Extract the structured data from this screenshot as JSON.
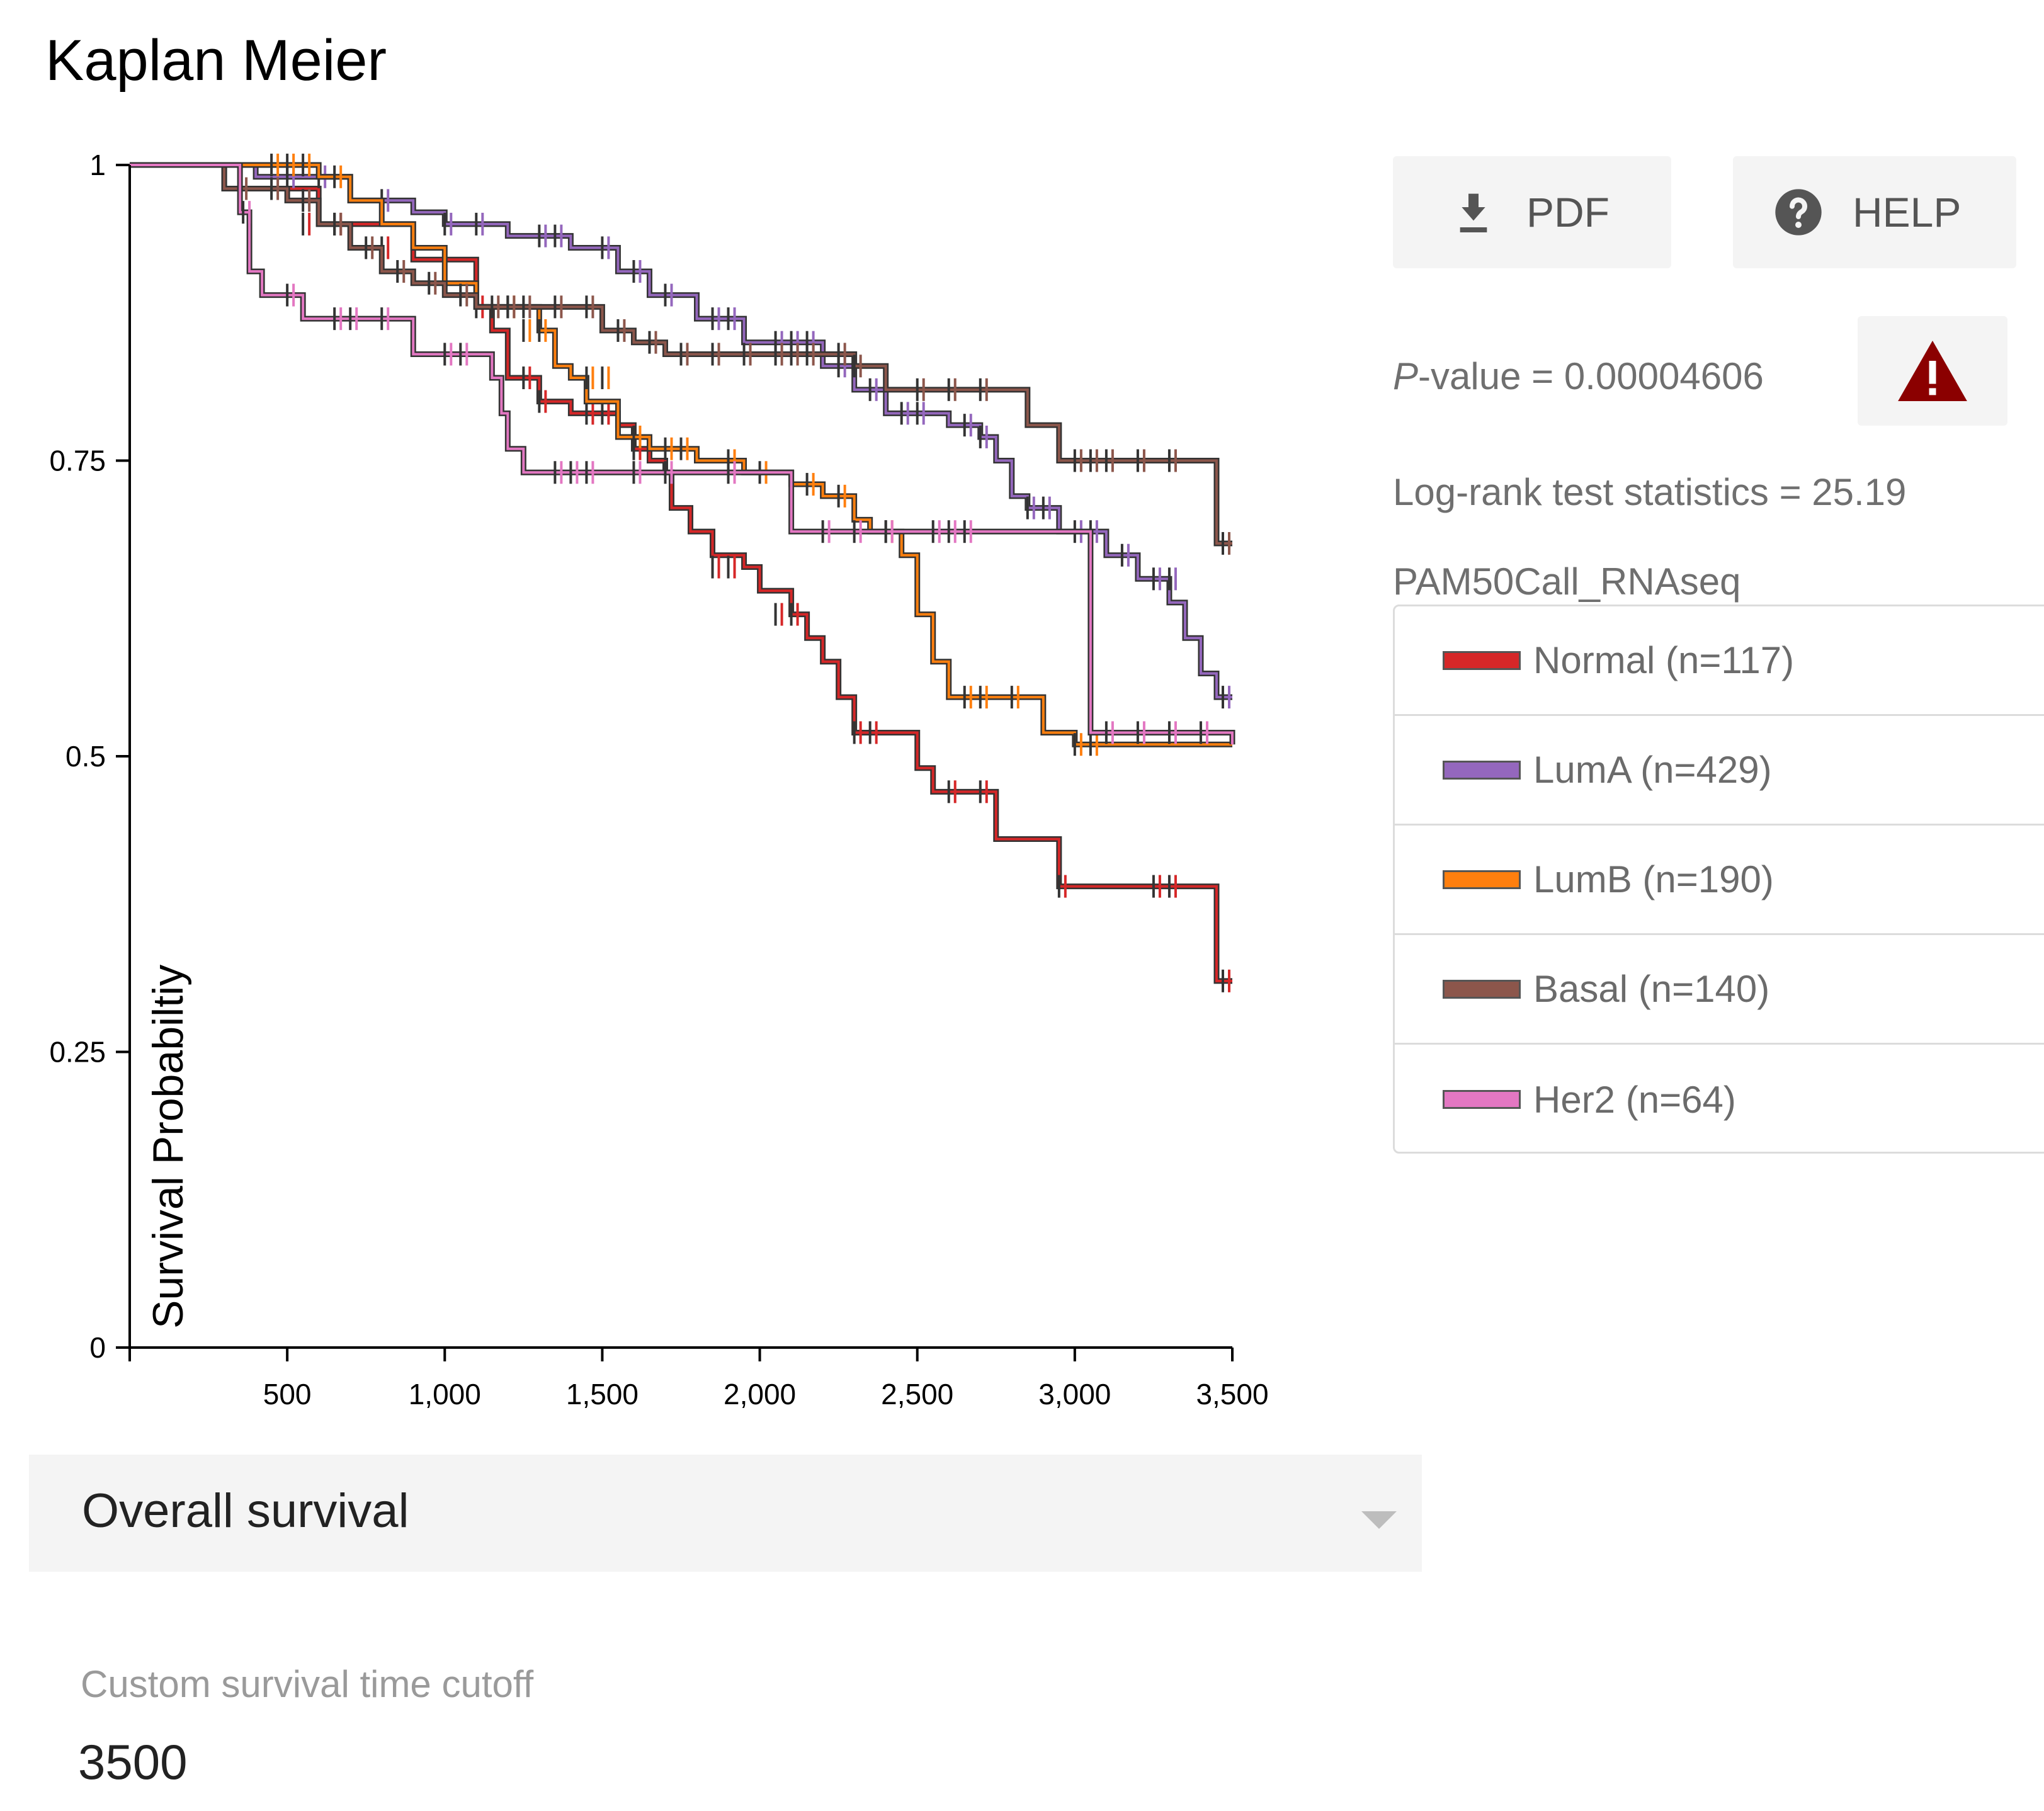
{
  "title": "Kaplan Meier",
  "buttons": {
    "pdf_label": "PDF",
    "help_label": "HELP"
  },
  "stats": {
    "pvalue_prefix": "P",
    "pvalue_rest": "-value = 0.00004606",
    "logrank": "Log-rank test statistics = 25.19",
    "grouping": "PAM50Call_RNAseq"
  },
  "icons": {
    "pdf": "download-icon",
    "help": "help-circle-icon",
    "warning": "warning-triangle-icon"
  },
  "colors": {
    "warning": "#8b0000"
  },
  "legend": [
    {
      "label": "Normal (n=117)",
      "color": "#d62728"
    },
    {
      "label": "LumA (n=429)",
      "color": "#9467bd"
    },
    {
      "label": "LumB (n=190)",
      "color": "#ff7f0e"
    },
    {
      "label": "Basal (n=140)",
      "color": "#8c564b"
    },
    {
      "label": "Her2 (n=64)",
      "color": "#e377c2"
    }
  ],
  "survival_select": {
    "value": "Overall survival"
  },
  "cutoff": {
    "label": "Custom survival time cutoff",
    "value": "3500"
  },
  "chart_data": {
    "type": "line",
    "title": "Kaplan Meier",
    "xlabel": "",
    "ylabel": "Survival Probabiltiy",
    "xlim": [
      0,
      3500
    ],
    "ylim": [
      0,
      1
    ],
    "xticks": [
      500,
      1000,
      1500,
      2000,
      2500,
      3000,
      3500
    ],
    "xtick_labels": [
      "500",
      "1,000",
      "1,500",
      "2,000",
      "2,500",
      "3,000",
      "3,500"
    ],
    "yticks": [
      0,
      0.25,
      0.5,
      0.75,
      1
    ],
    "ytick_labels": [
      "0",
      "0.25",
      "0.5",
      "0.75",
      "1"
    ],
    "grid": false,
    "legend": "right",
    "series": [
      {
        "name": "Normal (n=117)",
        "color": "#d62728",
        "steps": [
          [
            0,
            1
          ],
          [
            300,
            0.98
          ],
          [
            600,
            0.95
          ],
          [
            900,
            0.92
          ],
          [
            1100,
            0.88
          ],
          [
            1150,
            0.86
          ],
          [
            1200,
            0.82
          ],
          [
            1300,
            0.8
          ],
          [
            1400,
            0.79
          ],
          [
            1550,
            0.78
          ],
          [
            1600,
            0.76
          ],
          [
            1650,
            0.75
          ],
          [
            1700,
            0.74
          ],
          [
            1720,
            0.71
          ],
          [
            1780,
            0.69
          ],
          [
            1850,
            0.67
          ],
          [
            1950,
            0.66
          ],
          [
            2000,
            0.64
          ],
          [
            2100,
            0.62
          ],
          [
            2150,
            0.6
          ],
          [
            2200,
            0.58
          ],
          [
            2250,
            0.55
          ],
          [
            2300,
            0.52
          ],
          [
            2500,
            0.49
          ],
          [
            2550,
            0.47
          ],
          [
            2750,
            0.43
          ],
          [
            2950,
            0.39
          ],
          [
            3450,
            0.31
          ]
        ],
        "censors": [
          [
            550,
            0.95
          ],
          [
            650,
            0.95
          ],
          [
            800,
            0.93
          ],
          [
            1100,
            0.88
          ],
          [
            1250,
            0.82
          ],
          [
            1300,
            0.8
          ],
          [
            1450,
            0.79
          ],
          [
            1500,
            0.79
          ],
          [
            1600,
            0.76
          ],
          [
            1850,
            0.66
          ],
          [
            1900,
            0.66
          ],
          [
            2050,
            0.62
          ],
          [
            2100,
            0.62
          ],
          [
            2300,
            0.52
          ],
          [
            2350,
            0.52
          ],
          [
            2600,
            0.47
          ],
          [
            2700,
            0.47
          ],
          [
            2950,
            0.39
          ],
          [
            3250,
            0.39
          ],
          [
            3300,
            0.39
          ],
          [
            3470,
            0.31
          ]
        ]
      },
      {
        "name": "LumA (n=429)",
        "color": "#9467bd",
        "steps": [
          [
            0,
            1
          ],
          [
            400,
            0.99
          ],
          [
            700,
            0.97
          ],
          [
            900,
            0.96
          ],
          [
            1000,
            0.95
          ],
          [
            1200,
            0.94
          ],
          [
            1400,
            0.93
          ],
          [
            1550,
            0.91
          ],
          [
            1650,
            0.89
          ],
          [
            1800,
            0.87
          ],
          [
            1950,
            0.85
          ],
          [
            2200,
            0.83
          ],
          [
            2300,
            0.81
          ],
          [
            2400,
            0.79
          ],
          [
            2600,
            0.78
          ],
          [
            2700,
            0.77
          ],
          [
            2750,
            0.75
          ],
          [
            2800,
            0.72
          ],
          [
            2850,
            0.71
          ],
          [
            2950,
            0.69
          ],
          [
            3100,
            0.67
          ],
          [
            3200,
            0.65
          ],
          [
            3300,
            0.63
          ],
          [
            3350,
            0.6
          ],
          [
            3400,
            0.57
          ],
          [
            3450,
            0.55
          ]
        ],
        "censors": [
          [
            500,
            0.99
          ],
          [
            600,
            0.99
          ],
          [
            800,
            0.97
          ],
          [
            1000,
            0.95
          ],
          [
            1100,
            0.95
          ],
          [
            1300,
            0.94
          ],
          [
            1350,
            0.94
          ],
          [
            1500,
            0.93
          ],
          [
            1600,
            0.91
          ],
          [
            1700,
            0.89
          ],
          [
            1850,
            0.87
          ],
          [
            1900,
            0.87
          ],
          [
            2050,
            0.85
          ],
          [
            2100,
            0.85
          ],
          [
            2150,
            0.85
          ],
          [
            2250,
            0.83
          ],
          [
            2350,
            0.81
          ],
          [
            2450,
            0.79
          ],
          [
            2500,
            0.79
          ],
          [
            2650,
            0.78
          ],
          [
            2700,
            0.77
          ],
          [
            2850,
            0.71
          ],
          [
            2900,
            0.71
          ],
          [
            3000,
            0.69
          ],
          [
            3050,
            0.69
          ],
          [
            3150,
            0.67
          ],
          [
            3250,
            0.65
          ],
          [
            3300,
            0.65
          ],
          [
            3470,
            0.55
          ]
        ]
      },
      {
        "name": "LumB (n=190)",
        "color": "#ff7f0e",
        "steps": [
          [
            0,
            1
          ],
          [
            600,
            0.99
          ],
          [
            700,
            0.97
          ],
          [
            800,
            0.95
          ],
          [
            900,
            0.93
          ],
          [
            1000,
            0.9
          ],
          [
            1100,
            0.88
          ],
          [
            1300,
            0.86
          ],
          [
            1350,
            0.83
          ],
          [
            1400,
            0.82
          ],
          [
            1450,
            0.8
          ],
          [
            1550,
            0.77
          ],
          [
            1650,
            0.76
          ],
          [
            1800,
            0.75
          ],
          [
            1950,
            0.74
          ],
          [
            2100,
            0.73
          ],
          [
            2200,
            0.72
          ],
          [
            2300,
            0.7
          ],
          [
            2350,
            0.69
          ],
          [
            2450,
            0.67
          ],
          [
            2500,
            0.62
          ],
          [
            2550,
            0.58
          ],
          [
            2600,
            0.55
          ],
          [
            2900,
            0.52
          ],
          [
            3000,
            0.51
          ]
        ],
        "censors": [
          [
            450,
            1
          ],
          [
            500,
            1
          ],
          [
            550,
            1
          ],
          [
            650,
            0.99
          ],
          [
            1200,
            0.88
          ],
          [
            1250,
            0.86
          ],
          [
            1300,
            0.86
          ],
          [
            1450,
            0.82
          ],
          [
            1500,
            0.82
          ],
          [
            1600,
            0.77
          ],
          [
            1700,
            0.76
          ],
          [
            1750,
            0.76
          ],
          [
            1900,
            0.75
          ],
          [
            2000,
            0.74
          ],
          [
            2150,
            0.73
          ],
          [
            2250,
            0.72
          ],
          [
            2400,
            0.69
          ],
          [
            2650,
            0.55
          ],
          [
            2700,
            0.55
          ],
          [
            2800,
            0.55
          ],
          [
            3000,
            0.51
          ],
          [
            3050,
            0.51
          ]
        ]
      },
      {
        "name": "Basal (n=140)",
        "color": "#8c564b",
        "steps": [
          [
            0,
            1
          ],
          [
            300,
            0.98
          ],
          [
            500,
            0.97
          ],
          [
            600,
            0.95
          ],
          [
            700,
            0.93
          ],
          [
            800,
            0.91
          ],
          [
            900,
            0.9
          ],
          [
            1000,
            0.89
          ],
          [
            1100,
            0.88
          ],
          [
            1500,
            0.86
          ],
          [
            1600,
            0.85
          ],
          [
            1700,
            0.84
          ],
          [
            2300,
            0.83
          ],
          [
            2400,
            0.81
          ],
          [
            2850,
            0.78
          ],
          [
            2950,
            0.75
          ],
          [
            3450,
            0.68
          ]
        ],
        "censors": [
          [
            350,
            0.98
          ],
          [
            450,
            0.98
          ],
          [
            550,
            0.97
          ],
          [
            650,
            0.95
          ],
          [
            750,
            0.93
          ],
          [
            850,
            0.91
          ],
          [
            950,
            0.9
          ],
          [
            1050,
            0.89
          ],
          [
            1150,
            0.88
          ],
          [
            1200,
            0.88
          ],
          [
            1250,
            0.88
          ],
          [
            1350,
            0.88
          ],
          [
            1450,
            0.88
          ],
          [
            1550,
            0.86
          ],
          [
            1650,
            0.85
          ],
          [
            1750,
            0.84
          ],
          [
            1850,
            0.84
          ],
          [
            1950,
            0.84
          ],
          [
            2050,
            0.84
          ],
          [
            2100,
            0.84
          ],
          [
            2150,
            0.84
          ],
          [
            2250,
            0.84
          ],
          [
            2300,
            0.83
          ],
          [
            2500,
            0.81
          ],
          [
            2600,
            0.81
          ],
          [
            2700,
            0.81
          ],
          [
            3000,
            0.75
          ],
          [
            3050,
            0.75
          ],
          [
            3100,
            0.75
          ],
          [
            3200,
            0.75
          ],
          [
            3300,
            0.75
          ],
          [
            3470,
            0.68
          ]
        ]
      },
      {
        "name": "Her2 (n=64)",
        "color": "#e377c2",
        "steps": [
          [
            0,
            1
          ],
          [
            350,
            0.96
          ],
          [
            380,
            0.91
          ],
          [
            420,
            0.89
          ],
          [
            550,
            0.87
          ],
          [
            900,
            0.84
          ],
          [
            1150,
            0.82
          ],
          [
            1180,
            0.79
          ],
          [
            1200,
            0.76
          ],
          [
            1250,
            0.74
          ],
          [
            2100,
            0.69
          ],
          [
            3050,
            0.52
          ],
          [
            3500,
            0.51
          ]
        ],
        "censors": [
          [
            360,
            0.96
          ],
          [
            500,
            0.89
          ],
          [
            650,
            0.87
          ],
          [
            700,
            0.87
          ],
          [
            800,
            0.87
          ],
          [
            1000,
            0.84
          ],
          [
            1050,
            0.84
          ],
          [
            1350,
            0.74
          ],
          [
            1400,
            0.74
          ],
          [
            1450,
            0.74
          ],
          [
            1600,
            0.74
          ],
          [
            1700,
            0.74
          ],
          [
            1900,
            0.74
          ],
          [
            2200,
            0.69
          ],
          [
            2300,
            0.69
          ],
          [
            2400,
            0.69
          ],
          [
            2550,
            0.69
          ],
          [
            2600,
            0.69
          ],
          [
            2650,
            0.69
          ],
          [
            3100,
            0.52
          ],
          [
            3200,
            0.52
          ],
          [
            3300,
            0.52
          ],
          [
            3400,
            0.52
          ]
        ]
      }
    ]
  }
}
